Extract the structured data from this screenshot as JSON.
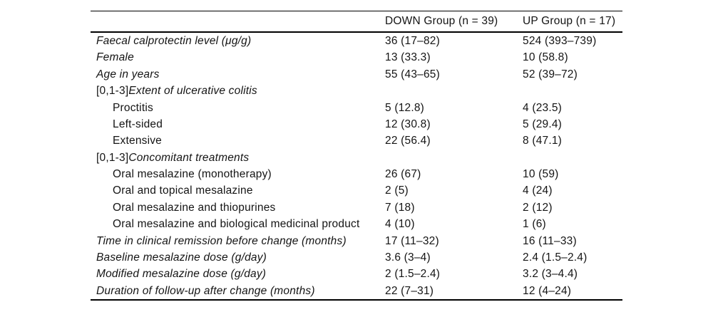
{
  "table": {
    "colors": {
      "text": "#141414",
      "rule": "#000000",
      "background": "#ffffff"
    },
    "columns": [
      {
        "label": ""
      },
      {
        "label": "DOWN Group (n = 39)"
      },
      {
        "label": "UP Group (n = 17)"
      }
    ],
    "rows": [
      {
        "prefix": "",
        "label": "Faecal calprotectin level (μg/g)",
        "italic": true,
        "indent": false,
        "down": "36 (17–82)",
        "up": "524 (393–739)"
      },
      {
        "prefix": "",
        "label": "Female",
        "italic": true,
        "indent": false,
        "down": "13 (33.3)",
        "up": "10 (58.8)"
      },
      {
        "prefix": "",
        "label": "Age in years",
        "italic": true,
        "indent": false,
        "down": "55 (43–65)",
        "up": "52 (39–72)"
      },
      {
        "prefix": "[0,1-3]",
        "label": "Extent of ulcerative colitis",
        "italic": true,
        "indent": false,
        "down": "",
        "up": ""
      },
      {
        "prefix": "",
        "label": "Proctitis",
        "italic": false,
        "indent": true,
        "down": "5 (12.8)",
        "up": "4 (23.5)"
      },
      {
        "prefix": "",
        "label": "Left-sided",
        "italic": false,
        "indent": true,
        "down": "12 (30.8)",
        "up": "5 (29.4)"
      },
      {
        "prefix": "",
        "label": "Extensive",
        "italic": false,
        "indent": true,
        "down": "22 (56.4)",
        "up": "8 (47.1)"
      },
      {
        "prefix": "[0,1-3]",
        "label": "Concomitant treatments",
        "italic": true,
        "indent": false,
        "down": "",
        "up": ""
      },
      {
        "prefix": "",
        "label": "Oral mesalazine (monotherapy)",
        "italic": false,
        "indent": true,
        "down": "26 (67)",
        "up": "10 (59)"
      },
      {
        "prefix": "",
        "label": "Oral and topical mesalazine",
        "italic": false,
        "indent": true,
        "down": "2 (5)",
        "up": "4 (24)"
      },
      {
        "prefix": "",
        "label": "Oral mesalazine and thiopurines",
        "italic": false,
        "indent": true,
        "down": "7 (18)",
        "up": "2 (12)"
      },
      {
        "prefix": "",
        "label": "Oral mesalazine and biological medicinal product",
        "italic": false,
        "indent": true,
        "down": "4 (10)",
        "up": "1 (6)"
      },
      {
        "prefix": "",
        "label": "Time in clinical remission before change (months)",
        "italic": true,
        "indent": false,
        "down": "17 (11–32)",
        "up": "16 (11–33)"
      },
      {
        "prefix": "",
        "label": "Baseline mesalazine dose (g/day)",
        "italic": true,
        "indent": false,
        "down": "3.6 (3–4)",
        "up": "2.4 (1.5–2.4)"
      },
      {
        "prefix": "",
        "label": "Modified mesalazine dose (g/day)",
        "italic": true,
        "indent": false,
        "down": "2 (1.5–2.4)",
        "up": "3.2 (3–4.4)"
      },
      {
        "prefix": "",
        "label": "Duration of follow-up after change (months)",
        "italic": true,
        "indent": false,
        "down": "22 (7–31)",
        "up": "12 (4–24)"
      }
    ]
  }
}
